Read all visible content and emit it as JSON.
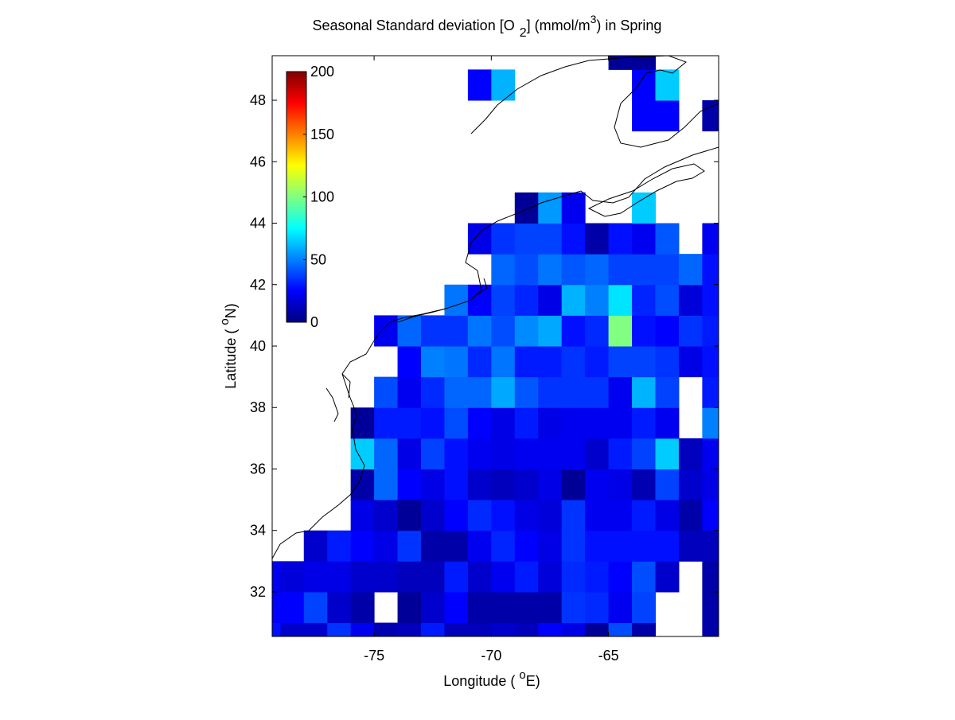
{
  "chart_data": {
    "type": "heatmap",
    "title": [
      "Seasonal Standard deviation [O",
      "2",
      "] (mmol/m",
      "3",
      ") in  Spring"
    ],
    "xlabel": [
      "Longitude ( ",
      "o",
      "E)"
    ],
    "ylabel": [
      "Latitude ( ",
      "o",
      "N)"
    ],
    "x": [
      -79.5,
      -78.5,
      -77.5,
      -76.5,
      -75.5,
      -74.5,
      -73.5,
      -72.5,
      -71.5,
      -70.5,
      -69.5,
      -68.5,
      -67.5,
      -66.5,
      -65.5,
      -64.5,
      -63.5,
      -62.5,
      -61.5,
      -60.5
    ],
    "y": [
      30.5,
      31.5,
      32.5,
      33.5,
      34.5,
      35.5,
      36.5,
      37.5,
      38.5,
      39.5,
      40.5,
      41.5,
      42.5,
      43.5,
      44.5,
      45.5,
      46.5,
      47.5,
      48.5,
      49.5
    ],
    "z": [
      [
        28,
        15,
        15,
        35,
        22,
        10,
        12,
        30,
        12,
        12,
        15,
        12,
        25,
        20,
        5,
        40,
        8,
        null,
        null,
        8
      ],
      [
        25,
        25,
        38,
        15,
        8,
        null,
        5,
        15,
        25,
        8,
        8,
        8,
        8,
        35,
        33,
        22,
        38,
        null,
        null,
        8
      ],
      [
        22,
        18,
        20,
        20,
        15,
        15,
        12,
        12,
        30,
        15,
        22,
        30,
        18,
        33,
        30,
        25,
        40,
        15,
        null,
        8
      ],
      [
        null,
        null,
        15,
        30,
        25,
        20,
        35,
        8,
        8,
        22,
        32,
        25,
        20,
        35,
        28,
        28,
        28,
        28,
        12,
        12
      ],
      [
        null,
        null,
        null,
        null,
        20,
        15,
        5,
        15,
        25,
        33,
        28,
        20,
        18,
        35,
        22,
        22,
        30,
        20,
        8,
        25
      ],
      [
        null,
        null,
        null,
        null,
        8,
        45,
        25,
        20,
        28,
        15,
        12,
        15,
        20,
        5,
        22,
        20,
        10,
        38,
        15,
        20
      ],
      [
        null,
        null,
        null,
        null,
        65,
        45,
        20,
        38,
        28,
        22,
        20,
        22,
        22,
        22,
        15,
        30,
        38,
        65,
        12,
        22
      ],
      [
        null,
        null,
        null,
        null,
        5,
        30,
        30,
        28,
        40,
        25,
        20,
        30,
        20,
        22,
        22,
        22,
        30,
        22,
        null,
        50
      ],
      [
        null,
        null,
        null,
        null,
        null,
        40,
        22,
        33,
        45,
        45,
        58,
        42,
        35,
        35,
        35,
        22,
        60,
        38,
        null,
        30
      ],
      [
        null,
        null,
        null,
        null,
        null,
        null,
        25,
        50,
        48,
        33,
        48,
        30,
        30,
        35,
        30,
        38,
        38,
        35,
        20,
        28
      ],
      [
        null,
        null,
        null,
        null,
        null,
        22,
        45,
        35,
        35,
        48,
        40,
        52,
        58,
        28,
        33,
        100,
        28,
        25,
        35,
        30
      ],
      [
        null,
        null,
        null,
        null,
        null,
        null,
        null,
        null,
        48,
        25,
        38,
        32,
        20,
        60,
        50,
        70,
        32,
        40,
        18,
        28
      ],
      [
        null,
        null,
        null,
        null,
        null,
        null,
        null,
        null,
        null,
        null,
        45,
        40,
        48,
        42,
        45,
        38,
        38,
        38,
        45,
        28
      ],
      [
        null,
        null,
        null,
        null,
        null,
        null,
        null,
        null,
        null,
        20,
        35,
        38,
        38,
        28,
        8,
        28,
        22,
        42,
        null,
        22
      ],
      [
        null,
        null,
        null,
        null,
        null,
        null,
        null,
        null,
        null,
        null,
        null,
        5,
        55,
        22,
        null,
        null,
        65,
        null,
        null,
        null
      ],
      [
        null,
        null,
        null,
        null,
        null,
        null,
        null,
        null,
        null,
        null,
        null,
        null,
        null,
        null,
        null,
        null,
        null,
        null,
        null,
        null
      ],
      [
        null,
        null,
        null,
        null,
        null,
        null,
        null,
        null,
        null,
        null,
        null,
        null,
        null,
        null,
        null,
        null,
        null,
        null,
        null,
        null
      ],
      [
        null,
        null,
        null,
        null,
        null,
        null,
        null,
        null,
        null,
        null,
        null,
        null,
        null,
        null,
        null,
        null,
        25,
        25,
        null,
        8
      ],
      [
        null,
        null,
        null,
        null,
        null,
        null,
        null,
        null,
        null,
        25,
        60,
        null,
        null,
        null,
        null,
        null,
        25,
        65,
        null,
        null
      ],
      [
        null,
        null,
        null,
        null,
        null,
        null,
        null,
        null,
        null,
        null,
        null,
        null,
        null,
        null,
        null,
        5,
        5,
        null,
        null,
        null
      ]
    ],
    "xlim": [
      -79.35,
      -60.3
    ],
    "ylim": [
      30.55,
      49.45
    ],
    "xticks": [
      -75,
      -70,
      -65
    ],
    "yticks": [
      32,
      34,
      36,
      38,
      40,
      42,
      44,
      46,
      48
    ],
    "colormap": "jet",
    "clim": [
      0,
      200
    ],
    "cticks": [
      0,
      50,
      100,
      150,
      200
    ]
  }
}
